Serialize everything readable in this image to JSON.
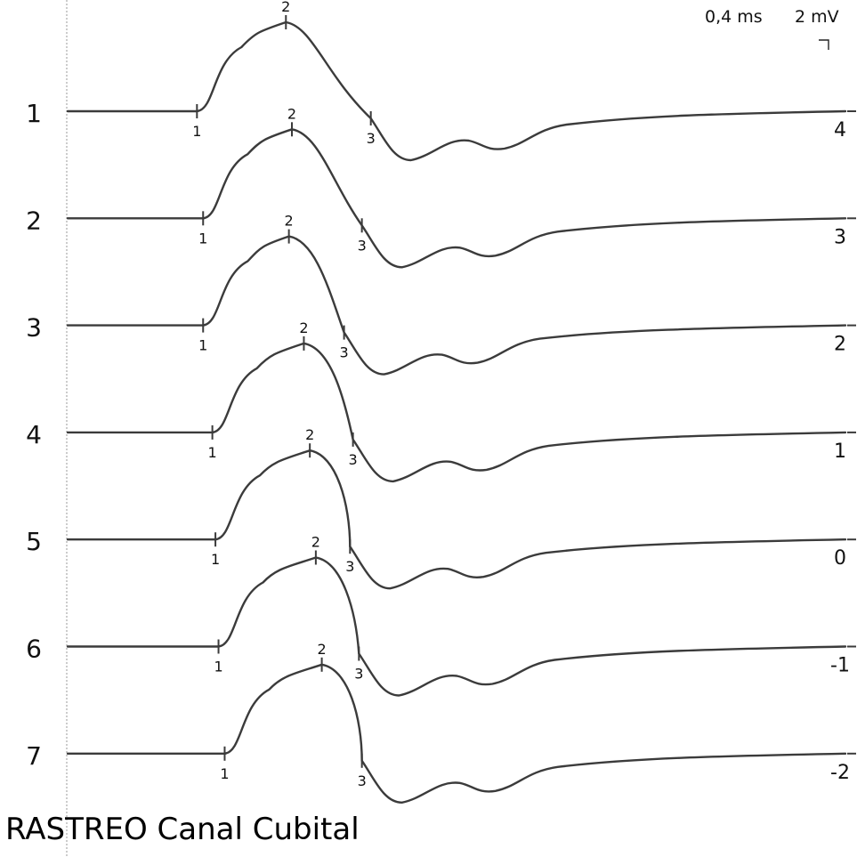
{
  "title": "RASTREO Canal Cubital",
  "scale": {
    "time_label": "0,4 ms",
    "amp_label": "2 mV"
  },
  "chart_data": {
    "type": "line",
    "title": "RASTREO Canal Cubital",
    "xlabel": "",
    "ylabel": "",
    "sweep": "0,4 ms",
    "sensitivity": "2 mV",
    "grid": false,
    "markers": [
      "1",
      "2",
      "3"
    ],
    "traces": [
      {
        "label": "1",
        "site": "4",
        "markers": [
          0.42,
          0.73,
          1.02
        ]
      },
      {
        "label": "2",
        "site": "3",
        "markers": [
          0.44,
          0.75,
          0.99
        ]
      },
      {
        "label": "3",
        "site": "2",
        "markers": [
          0.44,
          0.74,
          0.93
        ]
      },
      {
        "label": "4",
        "site": "1",
        "markers": [
          0.47,
          0.79,
          0.96
        ]
      },
      {
        "label": "5",
        "site": "0",
        "markers": [
          0.48,
          0.81,
          0.95
        ]
      },
      {
        "label": "6",
        "site": "-1",
        "markers": [
          0.49,
          0.83,
          0.98
        ]
      },
      {
        "label": "7",
        "site": "-2",
        "markers": [
          0.51,
          0.85,
          0.99
        ]
      }
    ]
  }
}
